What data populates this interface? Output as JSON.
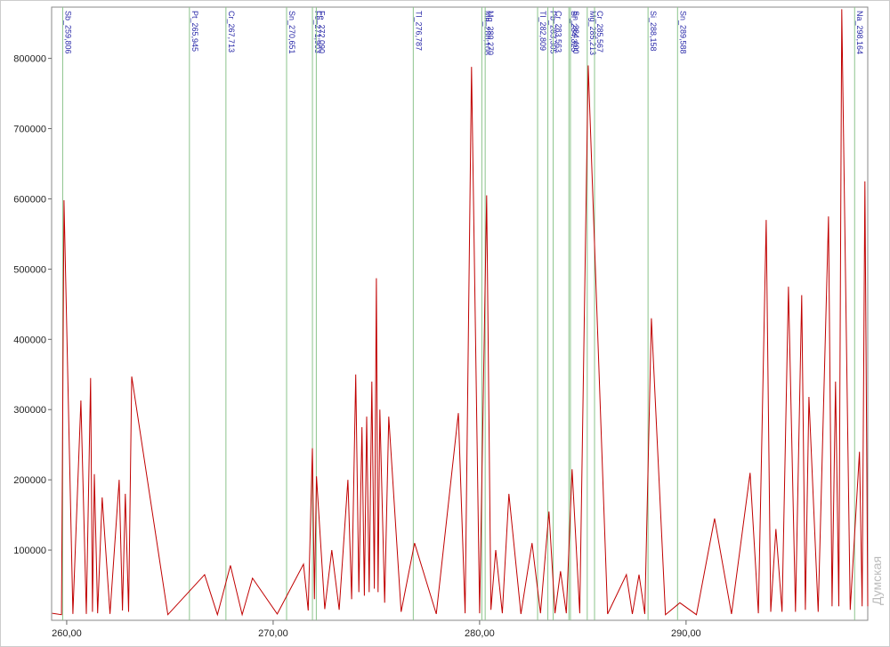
{
  "chart_data": {
    "type": "line",
    "x": [
      259.3,
      259.75,
      259.87,
      260.3,
      260.69,
      260.95,
      261.16,
      261.25,
      261.34,
      261.5,
      261.72,
      262.1,
      262.54,
      262.7,
      262.84,
      263.0,
      263.15,
      264.9,
      266.68,
      267.3,
      267.93,
      268.5,
      269.0,
      270.2,
      271.47,
      271.7,
      271.9,
      272.0,
      272.1,
      272.5,
      272.84,
      273.2,
      273.62,
      273.8,
      274.0,
      274.15,
      274.3,
      274.42,
      274.53,
      274.65,
      274.78,
      274.9,
      275.0,
      275.08,
      275.17,
      275.4,
      275.6,
      276.2,
      276.85,
      277.9,
      278.97,
      279.3,
      279.61,
      280.0,
      280.34,
      280.55,
      280.78,
      281.1,
      281.42,
      282.0,
      282.54,
      282.95,
      283.36,
      283.65,
      283.92,
      284.2,
      284.48,
      284.85,
      285.26,
      286.2,
      287.11,
      287.4,
      287.72,
      288.0,
      288.32,
      289.0,
      289.7,
      290.5,
      291.38,
      292.2,
      293.1,
      293.5,
      293.88,
      294.1,
      294.35,
      294.65,
      294.96,
      295.3,
      295.6,
      295.78,
      295.95,
      296.4,
      296.9,
      297.07,
      297.24,
      297.4,
      297.54,
      297.95,
      298.4,
      298.53,
      298.66,
      298.8
    ],
    "values": [
      10000,
      8000,
      598000,
      9000,
      313000,
      9000,
      345000,
      12000,
      208000,
      10000,
      175000,
      9000,
      200000,
      14000,
      180000,
      12000,
      347000,
      8000,
      65000,
      8000,
      78000,
      8000,
      60000,
      9000,
      80000,
      14000,
      245000,
      30000,
      205000,
      16000,
      100000,
      15000,
      200000,
      30000,
      350000,
      40000,
      275000,
      35000,
      290000,
      40000,
      340000,
      45000,
      487000,
      40000,
      300000,
      25000,
      290000,
      12000,
      110000,
      9000,
      295000,
      10000,
      788000,
      10000,
      605000,
      15000,
      100000,
      10000,
      180000,
      9000,
      110000,
      10000,
      155000,
      10000,
      70000,
      10000,
      215000,
      10000,
      790000,
      9000,
      65000,
      9000,
      65000,
      9000,
      430000,
      8000,
      25000,
      8000,
      145000,
      9000,
      210000,
      10000,
      570000,
      12000,
      130000,
      12000,
      475000,
      12000,
      463000,
      15000,
      318000,
      12000,
      575000,
      20000,
      340000,
      20000,
      870000,
      15000,
      240000,
      20000,
      625000,
      20000
    ],
    "color": "#c00000",
    "xlim": [
      259.27,
      298.8
    ],
    "ylim": [
      0,
      873000
    ],
    "xticks": [
      {
        "value": 260,
        "label": "260,00"
      },
      {
        "value": 270,
        "label": "270,00"
      },
      {
        "value": 280,
        "label": "280,00"
      },
      {
        "value": 290,
        "label": "290,00"
      }
    ],
    "yticks": [
      100000,
      200000,
      300000,
      400000,
      500000,
      600000,
      700000,
      800000
    ],
    "line_color": "#8cc48c",
    "label_color": "#2828a8",
    "lines": [
      {
        "x": 259.806,
        "label": "Sb_259,806"
      },
      {
        "x": 265.945,
        "label": "Pt_265,945"
      },
      {
        "x": 267.713,
        "label": "Cr_267,713"
      },
      {
        "x": 270.651,
        "label": "Sn_270,651"
      },
      {
        "x": 271.903,
        "label": "Fe_271,903"
      },
      {
        "x": 272.09,
        "label": "Fe_272,090"
      },
      {
        "x": 276.787,
        "label": "Tl_276,787"
      },
      {
        "x": 280.108,
        "label": "Mn_280,108"
      },
      {
        "x": 280.27,
        "label": "Mg_280,270"
      },
      {
        "x": 282.809,
        "label": "Tl_282,809"
      },
      {
        "x": 283.305,
        "label": "Pb_283,305"
      },
      {
        "x": 283.563,
        "label": "Cr_283,563"
      },
      {
        "x": 284.325,
        "label": "Sr_284,325"
      },
      {
        "x": 284.4,
        "label": "Sn_284,400"
      },
      {
        "x": 285.213,
        "label": "Mg_285,213"
      },
      {
        "x": 285.567,
        "label": "Cr_285,567"
      },
      {
        "x": 288.158,
        "label": "Si_288,158"
      },
      {
        "x": 289.588,
        "label": "Sn_289,588"
      },
      {
        "x": 298.164,
        "label": "Na_298,164"
      }
    ],
    "watermark": "Думская"
  }
}
